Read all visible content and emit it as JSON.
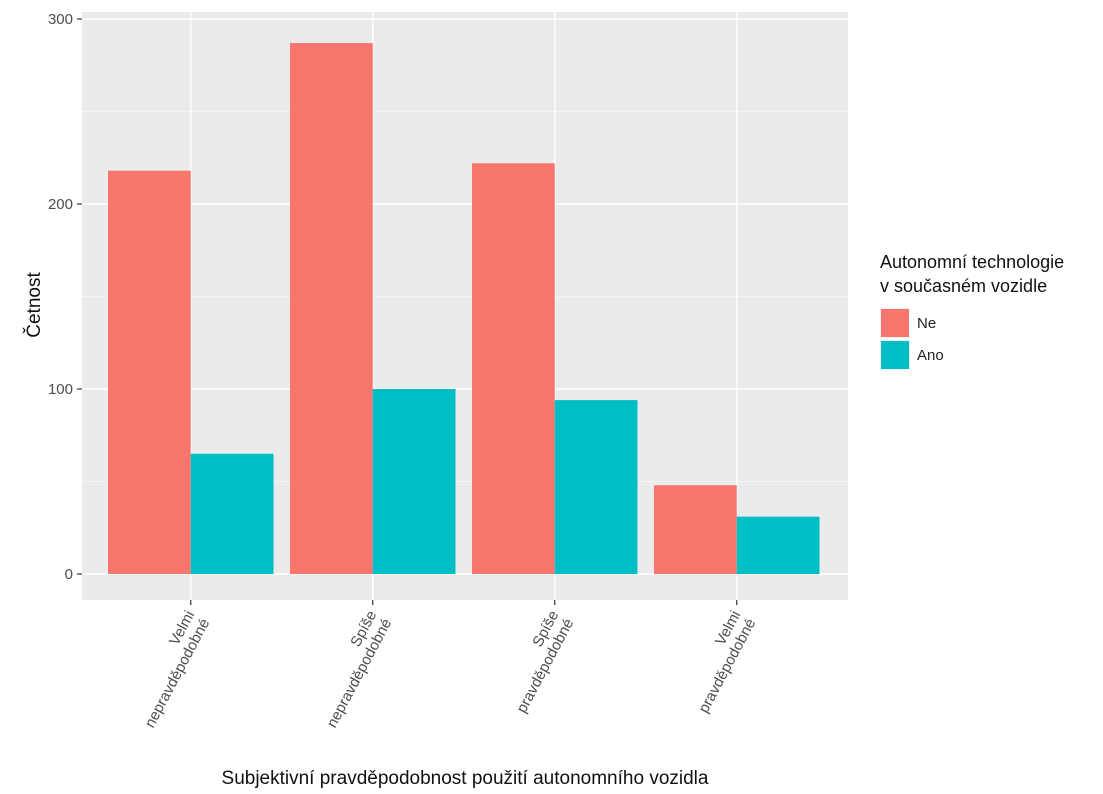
{
  "chart_data": {
    "type": "bar",
    "categories": [
      [
        "Velmi",
        "nepravděpodobné"
      ],
      [
        "Spíše",
        "nepravděpodobné"
      ],
      [
        "Spíše",
        "pravděpodobné"
      ],
      [
        "Velmi",
        "pravděpodobné"
      ]
    ],
    "series": [
      {
        "name": "Ne",
        "values": [
          218,
          287,
          222,
          48
        ],
        "color": "#F8766D"
      },
      {
        "name": "Ano",
        "values": [
          65,
          100,
          94,
          31
        ],
        "color": "#00BFC4"
      }
    ],
    "xlabel": "Subjektivní pravděpodobnost použití autonomního vozidla",
    "ylabel": "Četnost",
    "ylim": [
      0,
      300
    ],
    "y_ticks": [
      "0",
      "100",
      "200",
      "300"
    ],
    "legend": {
      "title": [
        "Autonomní technologie",
        "v současném vozidle"
      ],
      "placement": "right"
    },
    "grid": true,
    "panel_background": "#EBEBEB"
  }
}
